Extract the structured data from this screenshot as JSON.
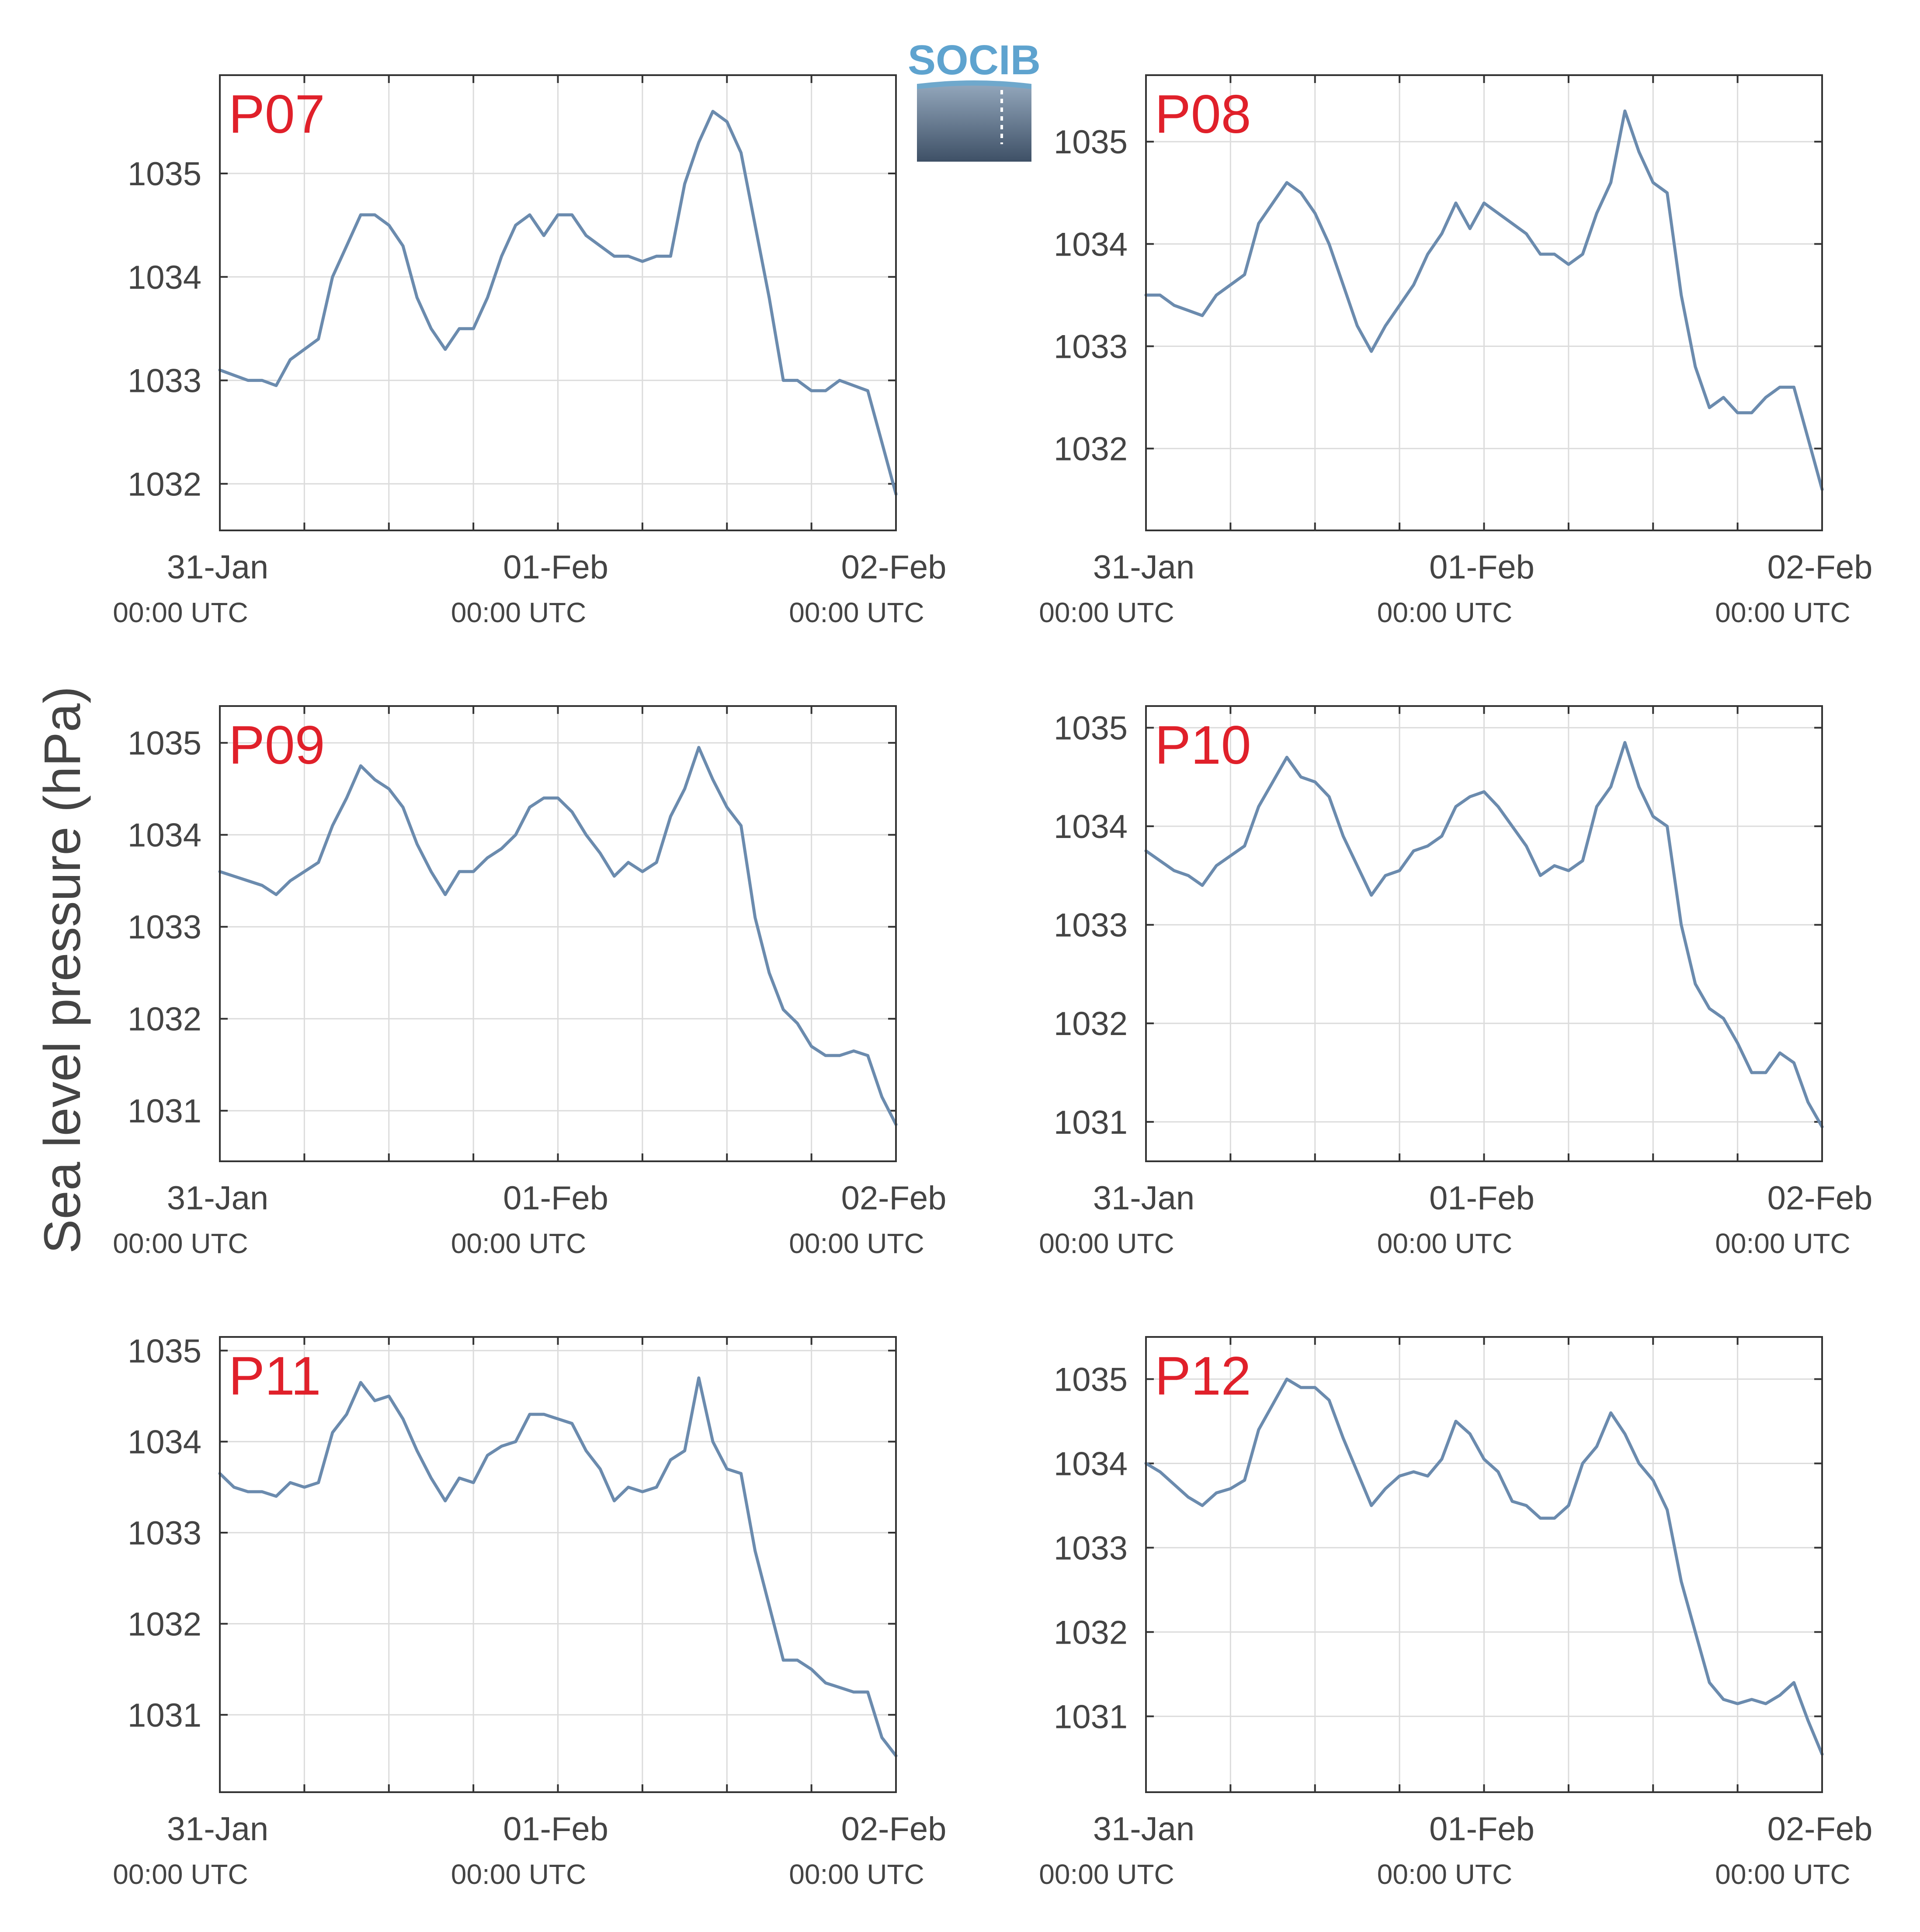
{
  "figure": {
    "ylabel": "Sea level pressure (hPa)",
    "colors": {
      "line": "#6b8bae",
      "label": "#e0202a",
      "grid": "#dcdcdc",
      "axis": "#333333",
      "text": "#444444"
    },
    "logo": {
      "text": "SOCIB"
    }
  },
  "chart_data": [
    {
      "type": "line",
      "title": "P07",
      "xlabel": "",
      "ylabel": "",
      "xlim": [
        "2024-01-31 00:00",
        "2024-02-02 00:00"
      ],
      "xticks": [
        {
          "label": "31-Jan",
          "sublabel": "00:00 UTC"
        },
        {
          "label": "01-Feb",
          "sublabel": "00:00 UTC"
        },
        {
          "label": "02-Feb",
          "sublabel": "00:00 UTC"
        }
      ],
      "ylim": [
        1031.55,
        1035.95
      ],
      "yticks": [
        1032,
        1033,
        1034,
        1035
      ],
      "grid": true,
      "series": [
        {
          "x_hours": [
            0,
            1,
            2,
            3,
            4,
            5,
            6,
            7,
            8,
            9,
            10,
            11,
            12,
            13,
            14,
            15,
            16,
            17,
            18,
            19,
            20,
            21,
            22,
            23,
            24,
            25,
            26,
            27,
            28,
            29,
            30,
            31,
            32,
            33,
            34,
            35,
            36,
            37,
            38,
            39,
            40,
            41,
            42,
            43,
            44,
            45,
            46,
            47,
            48
          ],
          "values": [
            1033.1,
            1033.05,
            1033.0,
            1033.0,
            1032.95,
            1033.2,
            1033.3,
            1033.4,
            1034.0,
            1034.3,
            1034.6,
            1034.6,
            1034.5,
            1034.3,
            1033.8,
            1033.5,
            1033.3,
            1033.5,
            1033.5,
            1033.8,
            1034.2,
            1034.5,
            1034.6,
            1034.4,
            1034.6,
            1034.6,
            1034.4,
            1034.3,
            1034.2,
            1034.2,
            1034.15,
            1034.2,
            1034.2,
            1034.9,
            1035.3,
            1035.6,
            1035.5,
            1035.2,
            1034.5,
            1033.8,
            1033.0,
            1033.0,
            1032.9,
            1032.9,
            1033.0,
            1032.95,
            1032.9,
            1032.4,
            1031.9
          ]
        }
      ]
    },
    {
      "type": "line",
      "title": "P08",
      "xlabel": "",
      "ylabel": "",
      "xlim": [
        "2024-01-31 00:00",
        "2024-02-02 00:00"
      ],
      "xticks": [
        {
          "label": "31-Jan",
          "sublabel": "00:00 UTC"
        },
        {
          "label": "01-Feb",
          "sublabel": "00:00 UTC"
        },
        {
          "label": "02-Feb",
          "sublabel": "00:00 UTC"
        }
      ],
      "ylim": [
        1031.2,
        1035.65
      ],
      "yticks": [
        1032,
        1033,
        1034,
        1035
      ],
      "grid": true,
      "series": [
        {
          "x_hours": [
            0,
            1,
            2,
            3,
            4,
            5,
            6,
            7,
            8,
            9,
            10,
            11,
            12,
            13,
            14,
            15,
            16,
            17,
            18,
            19,
            20,
            21,
            22,
            23,
            24,
            25,
            26,
            27,
            28,
            29,
            30,
            31,
            32,
            33,
            34,
            35,
            36,
            37,
            38,
            39,
            40,
            41,
            42,
            43,
            44,
            45,
            46,
            47,
            48
          ],
          "values": [
            1033.5,
            1033.5,
            1033.4,
            1033.35,
            1033.3,
            1033.5,
            1033.6,
            1033.7,
            1034.2,
            1034.4,
            1034.6,
            1034.5,
            1034.3,
            1034.0,
            1033.6,
            1033.2,
            1032.95,
            1033.2,
            1033.4,
            1033.6,
            1033.9,
            1034.1,
            1034.4,
            1034.15,
            1034.4,
            1034.3,
            1034.2,
            1034.1,
            1033.9,
            1033.9,
            1033.8,
            1033.9,
            1034.3,
            1034.6,
            1035.3,
            1034.9,
            1034.6,
            1034.5,
            1033.5,
            1032.8,
            1032.4,
            1032.5,
            1032.35,
            1032.35,
            1032.5,
            1032.6,
            1032.6,
            1032.1,
            1031.6
          ]
        }
      ]
    },
    {
      "type": "line",
      "title": "P09",
      "xlabel": "",
      "ylabel": "",
      "xlim": [
        "2024-01-31 00:00",
        "2024-02-02 00:00"
      ],
      "xticks": [
        {
          "label": "31-Jan",
          "sublabel": "00:00 UTC"
        },
        {
          "label": "01-Feb",
          "sublabel": "00:00 UTC"
        },
        {
          "label": "02-Feb",
          "sublabel": "00:00 UTC"
        }
      ],
      "ylim": [
        1030.45,
        1035.4
      ],
      "yticks": [
        1031,
        1032,
        1033,
        1034,
        1035
      ],
      "grid": true,
      "series": [
        {
          "x_hours": [
            0,
            1,
            2,
            3,
            4,
            5,
            6,
            7,
            8,
            9,
            10,
            11,
            12,
            13,
            14,
            15,
            16,
            17,
            18,
            19,
            20,
            21,
            22,
            23,
            24,
            25,
            26,
            27,
            28,
            29,
            30,
            31,
            32,
            33,
            34,
            35,
            36,
            37,
            38,
            39,
            40,
            41,
            42,
            43,
            44,
            45,
            46,
            47,
            48
          ],
          "values": [
            1033.6,
            1033.55,
            1033.5,
            1033.45,
            1033.35,
            1033.5,
            1033.6,
            1033.7,
            1034.1,
            1034.4,
            1034.75,
            1034.6,
            1034.5,
            1034.3,
            1033.9,
            1033.6,
            1033.35,
            1033.6,
            1033.6,
            1033.75,
            1033.85,
            1034.0,
            1034.3,
            1034.4,
            1034.4,
            1034.25,
            1034.0,
            1033.8,
            1033.55,
            1033.7,
            1033.6,
            1033.7,
            1034.2,
            1034.5,
            1034.95,
            1034.6,
            1034.3,
            1034.1,
            1033.1,
            1032.5,
            1032.1,
            1031.95,
            1031.7,
            1031.6,
            1031.6,
            1031.65,
            1031.6,
            1031.15,
            1030.85
          ]
        }
      ]
    },
    {
      "type": "line",
      "title": "P10",
      "xlabel": "",
      "ylabel": "",
      "xlim": [
        "2024-01-31 00:00",
        "2024-02-02 00:00"
      ],
      "xticks": [
        {
          "label": "31-Jan",
          "sublabel": "00:00 UTC"
        },
        {
          "label": "01-Feb",
          "sublabel": "00:00 UTC"
        },
        {
          "label": "02-Feb",
          "sublabel": "00:00 UTC"
        }
      ],
      "ylim": [
        1030.6,
        1035.22
      ],
      "yticks": [
        1031,
        1032,
        1033,
        1034,
        1035
      ],
      "grid": true,
      "series": [
        {
          "x_hours": [
            0,
            1,
            2,
            3,
            4,
            5,
            6,
            7,
            8,
            9,
            10,
            11,
            12,
            13,
            14,
            15,
            16,
            17,
            18,
            19,
            20,
            21,
            22,
            23,
            24,
            25,
            26,
            27,
            28,
            29,
            30,
            31,
            32,
            33,
            34,
            35,
            36,
            37,
            38,
            39,
            40,
            41,
            42,
            43,
            44,
            45,
            46,
            47,
            48
          ],
          "values": [
            1033.75,
            1033.65,
            1033.55,
            1033.5,
            1033.4,
            1033.6,
            1033.7,
            1033.8,
            1034.2,
            1034.45,
            1034.7,
            1034.5,
            1034.45,
            1034.3,
            1033.9,
            1033.6,
            1033.3,
            1033.5,
            1033.55,
            1033.75,
            1033.8,
            1033.9,
            1034.2,
            1034.3,
            1034.35,
            1034.2,
            1034.0,
            1033.8,
            1033.5,
            1033.6,
            1033.55,
            1033.65,
            1034.2,
            1034.4,
            1034.85,
            1034.4,
            1034.1,
            1034.0,
            1033.0,
            1032.4,
            1032.15,
            1032.05,
            1031.8,
            1031.5,
            1031.5,
            1031.7,
            1031.6,
            1031.2,
            1030.95
          ]
        }
      ]
    },
    {
      "type": "line",
      "title": "P11",
      "xlabel": "",
      "ylabel": "",
      "xlim": [
        "2024-01-31 00:00",
        "2024-02-02 00:00"
      ],
      "xticks": [
        {
          "label": "31-Jan",
          "sublabel": "00:00 UTC"
        },
        {
          "label": "01-Feb",
          "sublabel": "00:00 UTC"
        },
        {
          "label": "02-Feb",
          "sublabel": "00:00 UTC"
        }
      ],
      "ylim": [
        1030.15,
        1035.15
      ],
      "yticks": [
        1031,
        1032,
        1033,
        1034,
        1035
      ],
      "grid": true,
      "series": [
        {
          "x_hours": [
            0,
            1,
            2,
            3,
            4,
            5,
            6,
            7,
            8,
            9,
            10,
            11,
            12,
            13,
            14,
            15,
            16,
            17,
            18,
            19,
            20,
            21,
            22,
            23,
            24,
            25,
            26,
            27,
            28,
            29,
            30,
            31,
            32,
            33,
            34,
            35,
            36,
            37,
            38,
            39,
            40,
            41,
            42,
            43,
            44,
            45,
            46,
            47,
            48
          ],
          "values": [
            1033.65,
            1033.5,
            1033.45,
            1033.45,
            1033.4,
            1033.55,
            1033.5,
            1033.55,
            1034.1,
            1034.3,
            1034.65,
            1034.45,
            1034.5,
            1034.25,
            1033.9,
            1033.6,
            1033.35,
            1033.6,
            1033.55,
            1033.85,
            1033.95,
            1034.0,
            1034.3,
            1034.3,
            1034.25,
            1034.2,
            1033.9,
            1033.7,
            1033.35,
            1033.5,
            1033.45,
            1033.5,
            1033.8,
            1033.9,
            1034.7,
            1034.0,
            1033.7,
            1033.65,
            1032.8,
            1032.2,
            1031.6,
            1031.6,
            1031.5,
            1031.35,
            1031.3,
            1031.25,
            1031.25,
            1030.75,
            1030.55
          ]
        }
      ]
    },
    {
      "type": "line",
      "title": "P12",
      "xlabel": "",
      "ylabel": "",
      "xlim": [
        "2024-01-31 00:00",
        "2024-02-02 00:00"
      ],
      "xticks": [
        {
          "label": "31-Jan",
          "sublabel": "00:00 UTC"
        },
        {
          "label": "01-Feb",
          "sublabel": "00:00 UTC"
        },
        {
          "label": "02-Feb",
          "sublabel": "00:00 UTC"
        }
      ],
      "ylim": [
        1030.1,
        1035.5
      ],
      "yticks": [
        1031,
        1032,
        1033,
        1034,
        1035
      ],
      "grid": true,
      "series": [
        {
          "x_hours": [
            0,
            1,
            2,
            3,
            4,
            5,
            6,
            7,
            8,
            9,
            10,
            11,
            12,
            13,
            14,
            15,
            16,
            17,
            18,
            19,
            20,
            21,
            22,
            23,
            24,
            25,
            26,
            27,
            28,
            29,
            30,
            31,
            32,
            33,
            34,
            35,
            36,
            37,
            38,
            39,
            40,
            41,
            42,
            43,
            44,
            45,
            46,
            47,
            48
          ],
          "values": [
            1034.0,
            1033.9,
            1033.75,
            1033.6,
            1033.5,
            1033.65,
            1033.7,
            1033.8,
            1034.4,
            1034.7,
            1035.0,
            1034.9,
            1034.9,
            1034.75,
            1034.3,
            1033.9,
            1033.5,
            1033.7,
            1033.85,
            1033.9,
            1033.85,
            1034.05,
            1034.5,
            1034.35,
            1034.05,
            1033.9,
            1033.55,
            1033.5,
            1033.35,
            1033.35,
            1033.5,
            1034.0,
            1034.2,
            1034.6,
            1034.35,
            1034.0,
            1033.8,
            1033.45,
            1032.6,
            1032.0,
            1031.4,
            1031.2,
            1031.15,
            1031.2,
            1031.15,
            1031.25,
            1031.4,
            1030.95,
            1030.55
          ]
        }
      ]
    }
  ]
}
